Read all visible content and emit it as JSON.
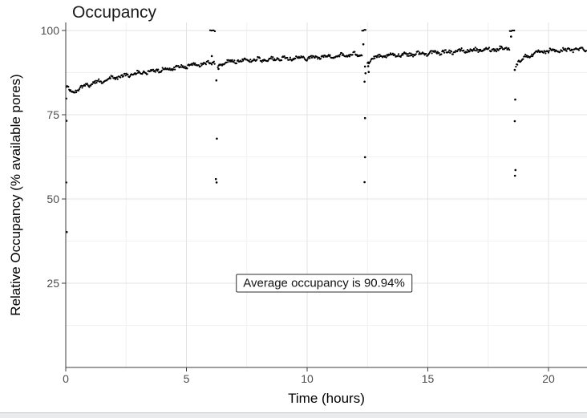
{
  "chart_data": {
    "type": "scatter",
    "title": "Occupancy",
    "xlabel": "Time (hours)",
    "ylabel": "Relative Occupancy (% available pores)",
    "x_ticks": [
      0,
      5,
      10,
      15,
      20
    ],
    "y_ticks": [
      25,
      50,
      75,
      100
    ],
    "xlim": [
      0,
      21.6
    ],
    "ylim": [
      0,
      102
    ],
    "grid": {
      "major": true,
      "minor": true,
      "major_color": "#e3e3e3",
      "minor_color": "#f1f1f1"
    },
    "point_color": "#000000",
    "axis_color": "#3c3c3c",
    "tick_label_color": "#4d4d4d",
    "annotation": {
      "text": "Average occupancy is 90.94%",
      "x": 10.7,
      "y": 25
    },
    "series": [
      {
        "name": "occupancy",
        "sample_step_hours": 0.03,
        "noise_amplitude": 0.45,
        "segments": [
          {
            "points": [
              [
                0.02,
                83.4
              ],
              [
                0.12,
                82.4
              ],
              [
                0.3,
                81.6
              ],
              [
                0.55,
                82.8
              ],
              [
                0.9,
                83.9
              ],
              [
                1.5,
                85.1
              ],
              [
                2,
                86.0
              ],
              [
                2.5,
                86.6
              ],
              [
                3,
                87.3
              ],
              [
                3.5,
                87.9
              ],
              [
                4,
                88.4
              ],
              [
                4.5,
                88.9
              ],
              [
                5,
                89.4
              ],
              [
                5.5,
                89.9
              ],
              [
                6.18,
                90.6
              ]
            ]
          },
          {
            "points": [
              [
                6.3,
                89.3
              ],
              [
                6.45,
                90.2
              ],
              [
                6.7,
                90.8
              ],
              [
                7.2,
                91.1
              ],
              [
                8,
                91.3
              ],
              [
                9,
                91.6
              ],
              [
                10,
                91.9
              ],
              [
                11,
                92.3
              ],
              [
                12.28,
                93.0
              ]
            ]
          },
          {
            "points": [
              [
                12.5,
                90.6
              ],
              [
                12.7,
                91.7
              ],
              [
                13.1,
                92.3
              ],
              [
                13.8,
                92.8
              ],
              [
                14.6,
                93.1
              ],
              [
                15.5,
                93.5
              ],
              [
                16.5,
                94.0
              ],
              [
                17.5,
                94.3
              ],
              [
                18.4,
                94.8
              ]
            ]
          },
          {
            "points": [
              [
                18.65,
                90.0
              ],
              [
                18.8,
                91.0
              ],
              [
                19.1,
                92.3
              ],
              [
                19.5,
                93.3
              ],
              [
                20.0,
                93.9
              ],
              [
                20.7,
                94.2
              ],
              [
                21.58,
                94.6
              ]
            ]
          }
        ]
      }
    ],
    "saturation_spikes": [
      {
        "t_range": [
          5.98,
          6.18
        ],
        "value": 100,
        "count": 5
      },
      {
        "t_range": [
          12.28,
          12.42
        ],
        "value": 100,
        "count": 4
      },
      {
        "t_range": [
          18.4,
          18.58
        ],
        "value": 100,
        "count": 5
      }
    ],
    "outliers": [
      [
        0.02,
        79.8
      ],
      [
        0.03,
        73.2
      ],
      [
        0.02,
        54.9
      ],
      [
        0.04,
        40.2
      ],
      [
        6.05,
        92.4
      ],
      [
        6.24,
        85.2
      ],
      [
        6.26,
        67.9
      ],
      [
        6.22,
        55.9
      ],
      [
        6.25,
        54.9
      ],
      [
        6.33,
        88.6
      ],
      [
        12.33,
        95.9
      ],
      [
        12.4,
        89.3
      ],
      [
        12.42,
        87.3
      ],
      [
        12.38,
        84.8
      ],
      [
        12.4,
        74.0
      ],
      [
        12.4,
        62.4
      ],
      [
        12.38,
        55.0
      ],
      [
        12.53,
        89.4
      ],
      [
        12.55,
        87.7
      ],
      [
        18.45,
        98.2
      ],
      [
        18.6,
        88.3
      ],
      [
        18.62,
        79.5
      ],
      [
        18.6,
        73.1
      ],
      [
        18.63,
        58.6
      ],
      [
        18.61,
        56.9
      ]
    ]
  },
  "page": {
    "bottom_strip_color": "#e9ebec"
  }
}
